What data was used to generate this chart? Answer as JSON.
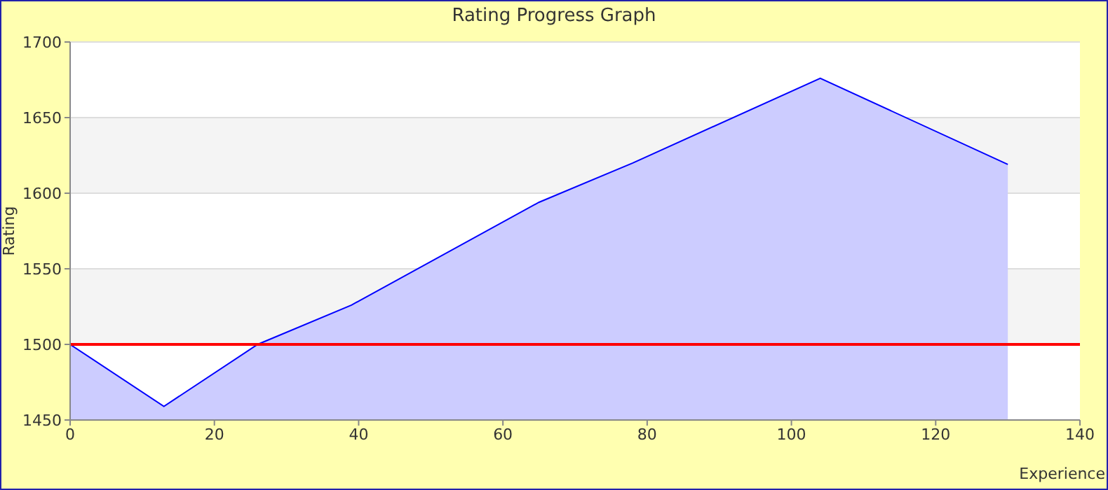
{
  "chart_data": {
    "type": "area",
    "title": "Rating Progress Graph",
    "xlabel": "Experience",
    "ylabel": "Rating",
    "x": [
      0,
      13,
      26,
      39,
      65,
      78,
      104,
      130
    ],
    "series": [
      {
        "color": "#0000ff",
        "values": [
          1500,
          1459,
          1500,
          1526,
          1594,
          1620,
          1676,
          1619
        ]
      }
    ],
    "xlim": [
      0,
      140
    ],
    "xticks": [
      0,
      20,
      40,
      60,
      80,
      100,
      120,
      140
    ],
    "ylim": [
      1450,
      1700
    ],
    "yticks": [
      1450,
      1500,
      1550,
      1600,
      1650,
      1700
    ],
    "ref_lines": [
      {
        "axis": "y",
        "value": 1500,
        "color": "#ff0000"
      }
    ],
    "grid": "y"
  }
}
